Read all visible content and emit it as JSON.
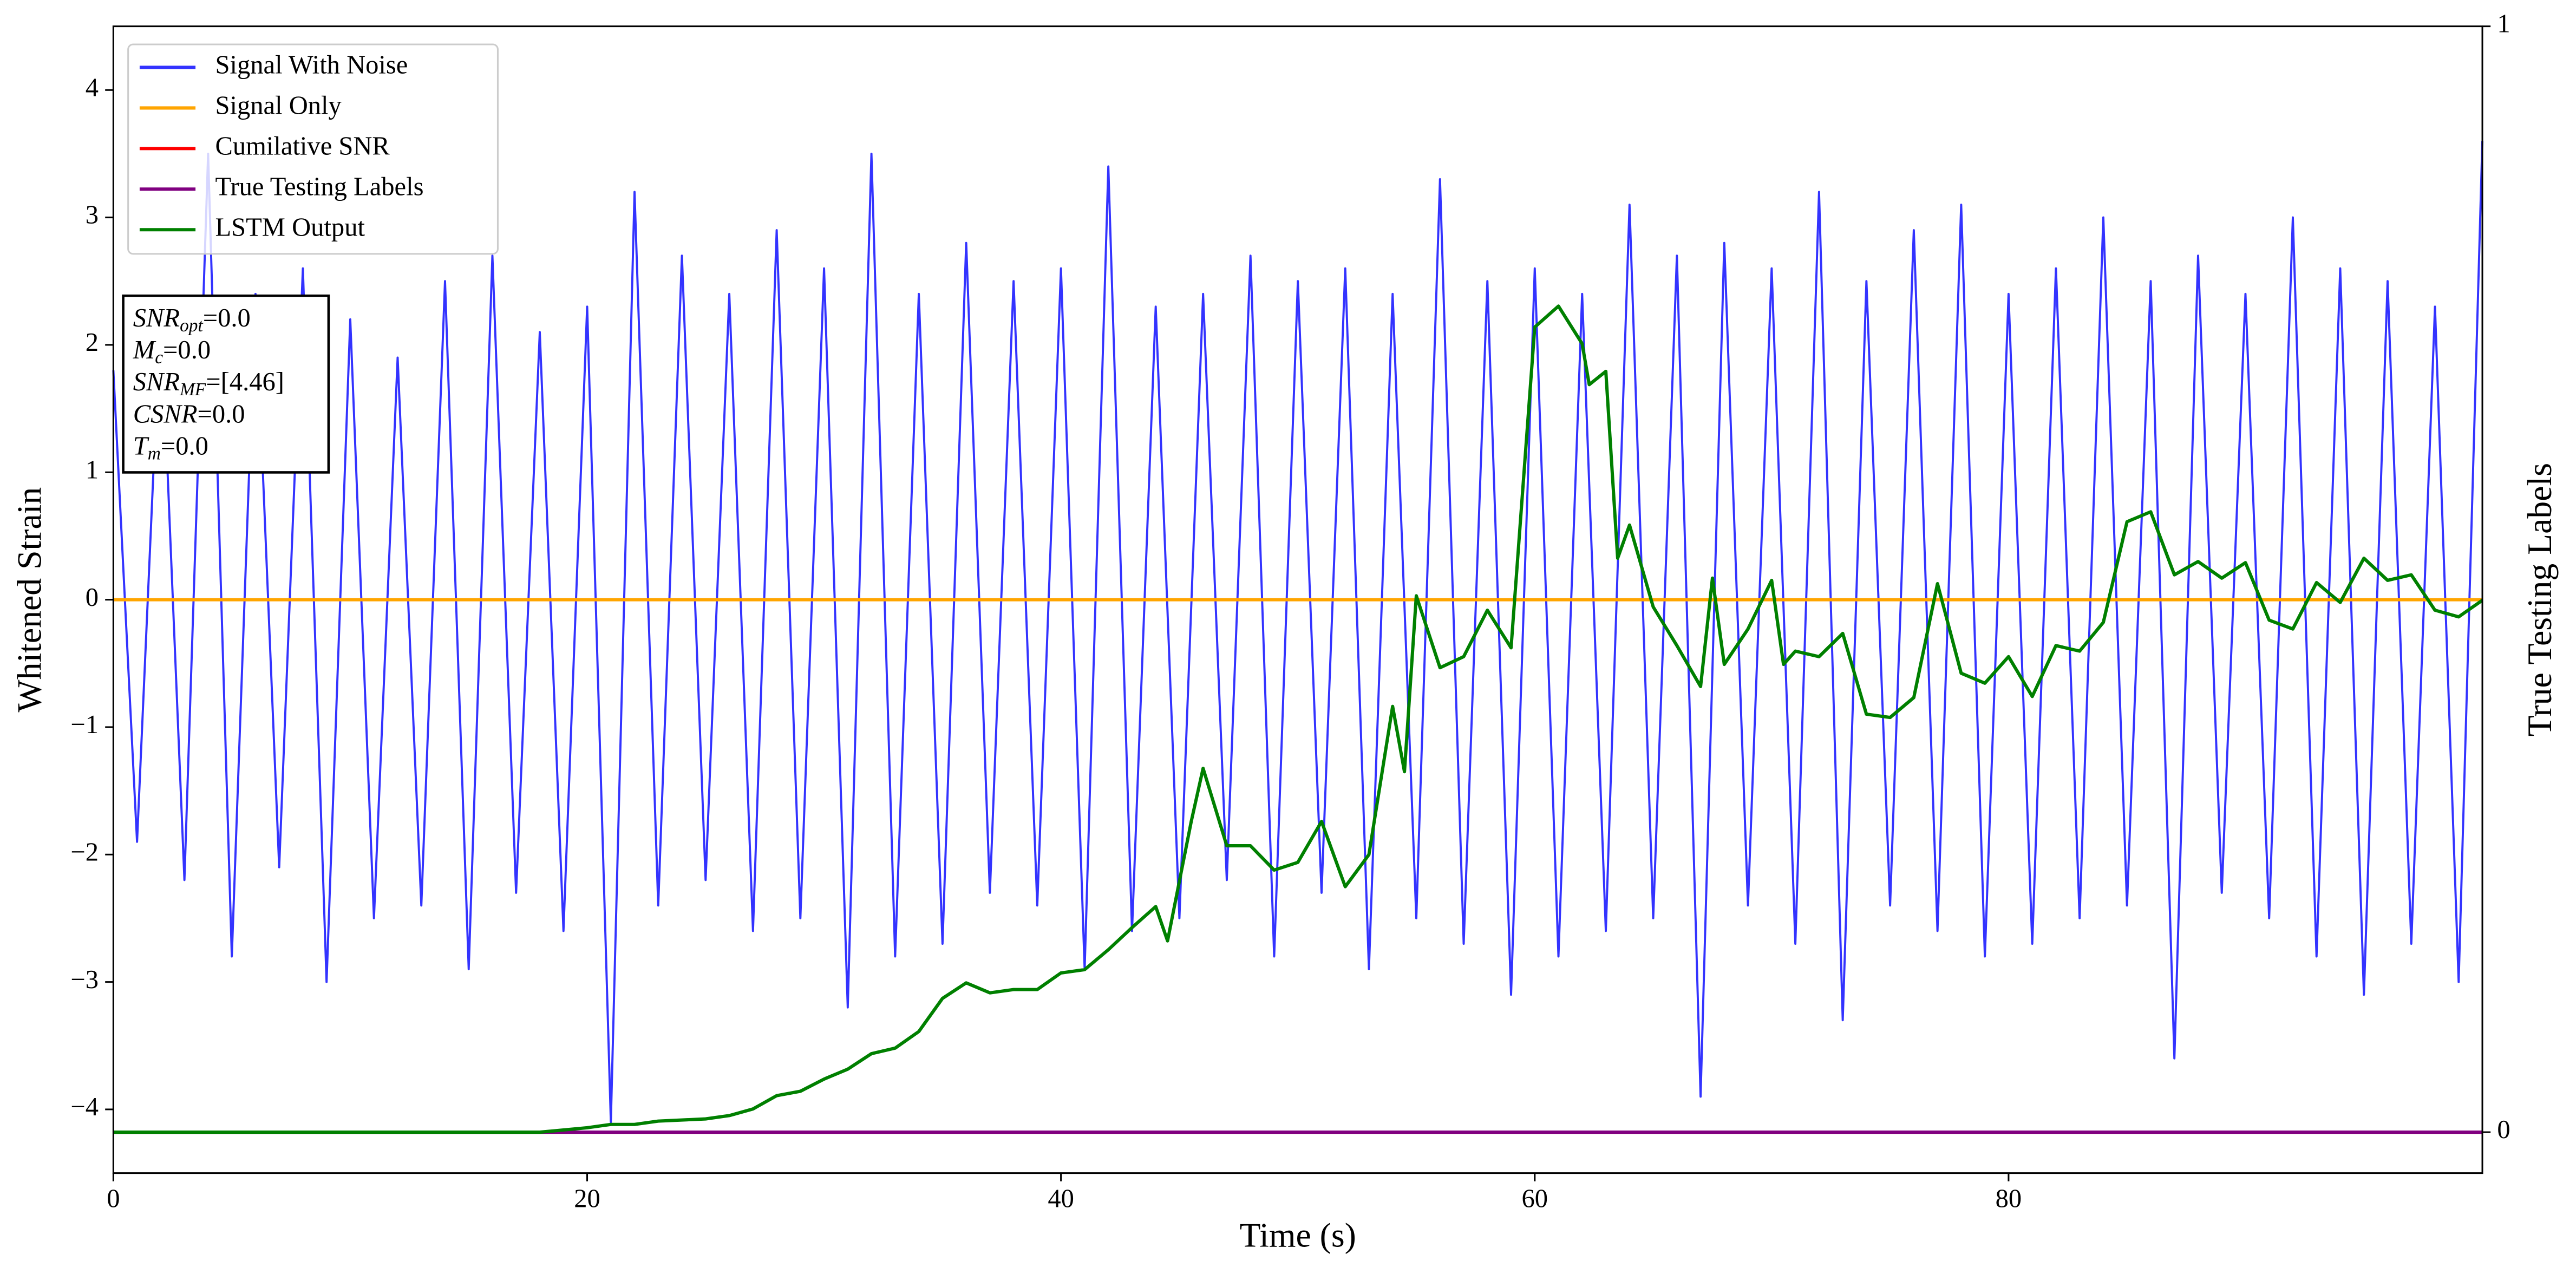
{
  "chart_data": {
    "type": "line",
    "xlabel": "Time (s)",
    "ylabel": "Whitened Strain",
    "y2label": "True Testing Labels",
    "xlim": [
      0,
      100
    ],
    "xticks": [
      0,
      20,
      40,
      60,
      80
    ],
    "ylim": [
      -4.5,
      4.5
    ],
    "yticks": [
      {
        "value": -4,
        "label": "−4"
      },
      {
        "value": -3,
        "label": "−3"
      },
      {
        "value": -2,
        "label": "−2"
      },
      {
        "value": -1,
        "label": "−1"
      },
      0,
      1,
      2,
      3,
      4
    ],
    "y2lim": [
      -0.037,
      1.0
    ],
    "y2ticks": [
      0,
      1
    ],
    "legend": "upper left",
    "series": [
      {
        "name": "Signal With Noise",
        "color": "#3333ff",
        "x": [
          0,
          1,
          2,
          3,
          4,
          5,
          6,
          7,
          8,
          9,
          10,
          11,
          12,
          13,
          14,
          15,
          16,
          17,
          18,
          19,
          20,
          21,
          22,
          23,
          24,
          25,
          26,
          27,
          28,
          29,
          30,
          31,
          32,
          33,
          34,
          35,
          36,
          37,
          38,
          39,
          40,
          41,
          42,
          43,
          44,
          45,
          46,
          47,
          48,
          49,
          50,
          51,
          52,
          53,
          54,
          55,
          56,
          57,
          58,
          59,
          60,
          61,
          62,
          63,
          64,
          65,
          66,
          67,
          68,
          69,
          70,
          71,
          72,
          73,
          74,
          75,
          76,
          77,
          78,
          79,
          80,
          81,
          82,
          83,
          84,
          85,
          86,
          87,
          88,
          89,
          90,
          91,
          92,
          93,
          94,
          95,
          96,
          97,
          98,
          99,
          100
        ],
        "values": [
          1.8,
          -1.9,
          2.3,
          -2.2,
          3.5,
          -2.8,
          2.4,
          -2.1,
          2.6,
          -3.0,
          2.2,
          -2.5,
          1.9,
          -2.4,
          2.5,
          -2.9,
          2.7,
          -2.3,
          2.1,
          -2.6,
          2.3,
          -4.1,
          3.2,
          -2.4,
          2.7,
          -2.2,
          2.4,
          -2.6,
          2.9,
          -2.5,
          2.6,
          -3.2,
          3.5,
          -2.8,
          2.4,
          -2.7,
          2.8,
          -2.3,
          2.5,
          -2.4,
          2.6,
          -2.9,
          3.4,
          -2.6,
          2.3,
          -2.5,
          2.4,
          -2.2,
          2.7,
          -2.8,
          2.5,
          -2.3,
          2.6,
          -2.9,
          2.4,
          -2.5,
          3.3,
          -2.7,
          2.5,
          -3.1,
          2.6,
          -2.8,
          2.4,
          -2.6,
          3.1,
          -2.5,
          2.7,
          -3.9,
          2.8,
          -2.4,
          2.6,
          -2.7,
          3.2,
          -3.3,
          2.5,
          -2.4,
          2.9,
          -2.6,
          3.1,
          -2.8,
          2.4,
          -2.7,
          2.6,
          -2.5,
          3.0,
          -2.4,
          2.5,
          -3.6,
          2.7,
          -2.3,
          2.4,
          -2.5,
          3.0,
          -2.8,
          2.6,
          -3.1,
          2.5,
          -2.7,
          2.3,
          -3.0,
          3.6
        ]
      },
      {
        "name": "Signal Only",
        "color": "#ffa500",
        "x": [
          0,
          100
        ],
        "values": [
          0,
          0
        ]
      },
      {
        "name": "Cumilative SNR",
        "color": "#ff0000",
        "axis": "y2",
        "x": [
          0,
          100
        ],
        "values": [
          0,
          0
        ]
      },
      {
        "name": "True Testing Labels",
        "color": "#800080",
        "axis": "y2",
        "x": [
          0,
          100
        ],
        "values": [
          0,
          0
        ]
      },
      {
        "name": "LSTM Output",
        "color": "#008000",
        "axis": "y2",
        "x": [
          0,
          18,
          20,
          21,
          22,
          23,
          25,
          26,
          27,
          28,
          29,
          30,
          31,
          32,
          33,
          34,
          35,
          36,
          37,
          38,
          39,
          40,
          41,
          42,
          43,
          44,
          44.5,
          45.5,
          46,
          47,
          48,
          49,
          50,
          51,
          52,
          53,
          54,
          54.5,
          55,
          56,
          57,
          58,
          59,
          60,
          61,
          62,
          62.3,
          63,
          63.5,
          64,
          65,
          66,
          67,
          67.5,
          68,
          69,
          70,
          70.5,
          71,
          72,
          73,
          74,
          75,
          76,
          77,
          78,
          79,
          80,
          81,
          82,
          83,
          84,
          85,
          86,
          87,
          88,
          89,
          90,
          91,
          92,
          93,
          94,
          95,
          96,
          97,
          98,
          99,
          100
        ],
        "values": [
          0,
          0,
          0.004,
          0.007,
          0.007,
          0.01,
          0.012,
          0.015,
          0.021,
          0.033,
          0.037,
          0.048,
          0.057,
          0.071,
          0.076,
          0.091,
          0.121,
          0.135,
          0.126,
          0.129,
          0.129,
          0.144,
          0.147,
          0.165,
          0.185,
          0.204,
          0.173,
          0.281,
          0.329,
          0.259,
          0.259,
          0.237,
          0.244,
          0.281,
          0.222,
          0.251,
          0.385,
          0.326,
          0.485,
          0.42,
          0.43,
          0.472,
          0.438,
          0.728,
          0.747,
          0.713,
          0.676,
          0.688,
          0.519,
          0.549,
          0.475,
          0.44,
          0.403,
          0.501,
          0.423,
          0.455,
          0.499,
          0.423,
          0.435,
          0.43,
          0.451,
          0.378,
          0.375,
          0.393,
          0.496,
          0.415,
          0.406,
          0.43,
          0.394,
          0.44,
          0.435,
          0.461,
          0.552,
          0.561,
          0.504,
          0.516,
          0.501,
          0.515,
          0.463,
          0.455,
          0.497,
          0.479,
          0.519,
          0.499,
          0.504,
          0.472,
          0.466,
          0.481
        ]
      }
    ],
    "annotation": [
      [
        "SNR",
        "opt",
        "=0.0"
      ],
      [
        "M",
        "c",
        "=0.0"
      ],
      [
        "SNR",
        "MF",
        "=[4.46]"
      ],
      [
        "CSNR",
        "=0.0"
      ],
      [
        "T",
        "m",
        "=0.0"
      ]
    ]
  }
}
